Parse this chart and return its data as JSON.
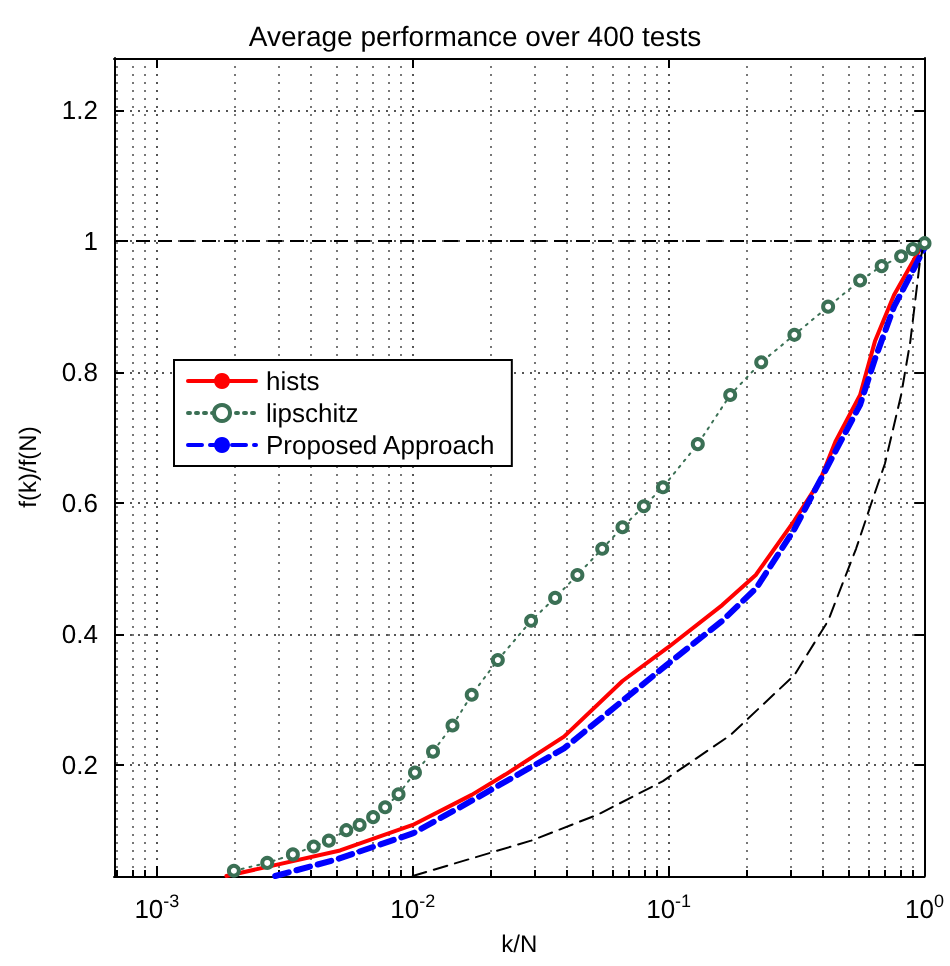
{
  "chart_data": {
    "type": "line",
    "title": "Average performance over 400 tests",
    "xlabel": "k/N",
    "ylabel": "f(k)/f(N)",
    "xlim": [
      0.00068,
      1
    ],
    "xticks": [
      {
        "value": 0.001,
        "label": "10$^{-3}$"
      },
      {
        "value": 0.01,
        "label": "10$^{-2}$"
      },
      {
        "value": 0.1,
        "label": "10$^{-1}$"
      },
      {
        "value": 1,
        "label": "10$^{0}$"
      }
    ],
    "ylim": [
      0.03,
      1.28
    ],
    "yticks": [
      0.2,
      0.4,
      0.6,
      0.8,
      1,
      1.2
    ],
    "log": "x",
    "grid": true,
    "legend": "left",
    "ref_lines": [
      {
        "axis": "y",
        "value": 1,
        "color": "#000000",
        "line_style": "dashed"
      }
    ],
    "series": [
      {
        "name": "hists",
        "color": "#ff0000",
        "line_style": "solid",
        "marker": "none",
        "x": [
          0.00187,
          0.0027,
          0.0052,
          0.01,
          0.017,
          0.023,
          0.039,
          0.066,
          0.1,
          0.162,
          0.219,
          0.31,
          0.39,
          0.45,
          0.56,
          0.64,
          0.76,
          0.95,
          1
        ],
        "values": [
          0.03,
          0.044,
          0.069,
          0.108,
          0.154,
          0.185,
          0.243,
          0.328,
          0.38,
          0.444,
          0.49,
          0.573,
          0.634,
          0.695,
          0.765,
          0.847,
          0.918,
          0.985,
          1
        ]
      },
      {
        "name": "lipschitz",
        "color": "#3b7055",
        "line_style": "dotted",
        "marker": "circle",
        "x": [
          0.002,
          0.0027,
          0.0034,
          0.0041,
          0.0047,
          0.0055,
          0.0062,
          0.007,
          0.0078,
          0.0088,
          0.0102,
          0.012,
          0.0143,
          0.017,
          0.0215,
          0.029,
          0.036,
          0.044,
          0.055,
          0.066,
          0.08,
          0.095,
          0.13,
          0.174,
          0.23,
          0.31,
          0.42,
          0.56,
          0.68,
          0.81,
          0.9,
          1
        ],
        "values": [
          0.038,
          0.05,
          0.063,
          0.075,
          0.084,
          0.1,
          0.108,
          0.12,
          0.135,
          0.155,
          0.188,
          0.22,
          0.26,
          0.307,
          0.36,
          0.42,
          0.455,
          0.49,
          0.53,
          0.563,
          0.595,
          0.624,
          0.69,
          0.765,
          0.815,
          0.857,
          0.9,
          0.94,
          0.962,
          0.977,
          0.988,
          0.997
        ]
      },
      {
        "name": "Proposed Approach",
        "color": "#0000ff",
        "line_style": "dashed",
        "marker": "none",
        "x": [
          0.0029,
          0.005,
          0.01,
          0.017,
          0.039,
          0.1,
          0.162,
          0.22,
          0.31,
          0.45,
          0.56,
          0.64,
          0.76,
          0.9,
          1
        ],
        "values": [
          0.03,
          0.055,
          0.095,
          0.145,
          0.225,
          0.355,
          0.42,
          0.47,
          0.56,
          0.68,
          0.75,
          0.82,
          0.9,
          0.955,
          0.99
        ]
      },
      {
        "color": "#000000",
        "line_style": "dashed",
        "marker": "none",
        "x": [
          0.01,
          0.029,
          0.053,
          0.095,
          0.174,
          0.31,
          0.42,
          0.54,
          0.62,
          0.7,
          0.81,
          0.88,
          0.96,
          1
        ],
        "values": [
          0.03,
          0.084,
          0.124,
          0.175,
          0.245,
          0.337,
          0.42,
          0.53,
          0.6,
          0.66,
          0.765,
          0.847,
          0.97,
          1
        ]
      }
    ]
  }
}
